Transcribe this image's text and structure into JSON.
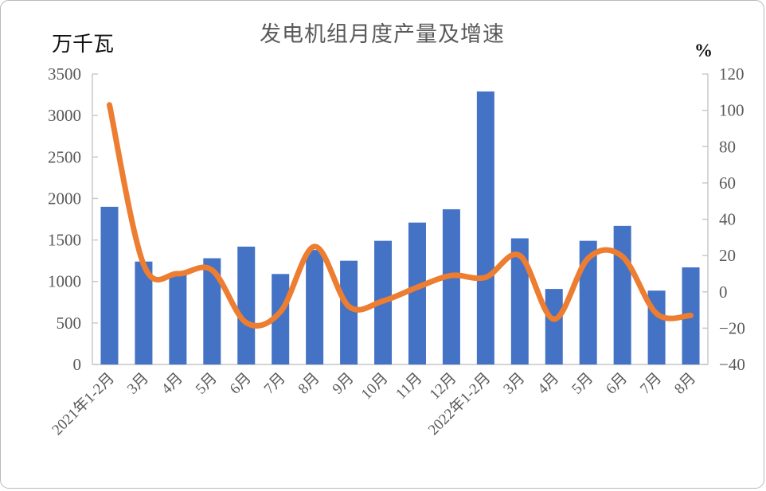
{
  "chart": {
    "title": "发电机组月度产量及增速",
    "left_axis_unit": "万千瓦",
    "right_axis_unit": "%"
  },
  "chart_data": {
    "type": "bar",
    "subtype": "bar+smooth-line combo, dual axis",
    "title": "发电机组月度产量及增速",
    "categories": [
      "2021年1-2月",
      "3月",
      "4月",
      "5月",
      "6月",
      "7月",
      "8月",
      "9月",
      "10月",
      "11月",
      "12月",
      "2022年1-2月",
      "3月",
      "4月",
      "5月",
      "6月",
      "7月",
      "8月"
    ],
    "series": [
      {
        "name": "月度产量",
        "type": "bar",
        "axis": "left",
        "unit": "万千瓦",
        "color": "#4472C4",
        "values": [
          1900,
          1240,
          1090,
          1280,
          1420,
          1090,
          1380,
          1250,
          1490,
          1710,
          1870,
          3290,
          1520,
          910,
          1490,
          1670,
          890,
          1170
        ]
      },
      {
        "name": "增速",
        "type": "line",
        "axis": "right",
        "unit": "%",
        "color": "#ED7D31",
        "smooth": true,
        "values": [
          103,
          15,
          10,
          12,
          -17,
          -11,
          25,
          -8,
          -5,
          2.5,
          9,
          8,
          20,
          -15,
          18.5,
          19.5,
          -12,
          -13
        ]
      }
    ],
    "left_axis": {
      "unit": "万千瓦",
      "min": 0,
      "max": 3500,
      "ticks": [
        0,
        500,
        1000,
        1500,
        2000,
        2500,
        3000,
        3500
      ],
      "tick_labels": [
        "0",
        "500",
        "1000",
        "1500",
        "2000",
        "2500",
        "3000",
        "3500"
      ]
    },
    "right_axis": {
      "unit": "%",
      "min": -40,
      "max": 120,
      "ticks": [
        -40,
        -20,
        0,
        20,
        40,
        60,
        80,
        100,
        120
      ],
      "tick_labels": [
        "−40",
        "−20",
        "0",
        "20",
        "40",
        "60",
        "80",
        "100",
        "120"
      ]
    },
    "grid": false,
    "legend": "none",
    "x_label_rotation_deg": -45,
    "colors": {
      "bar": "#4472C4",
      "line": "#ED7D31",
      "axis_line": "#c6c6c6",
      "tick_text": "#595959",
      "title_text": "#595959",
      "unit_text": "#111111"
    }
  }
}
